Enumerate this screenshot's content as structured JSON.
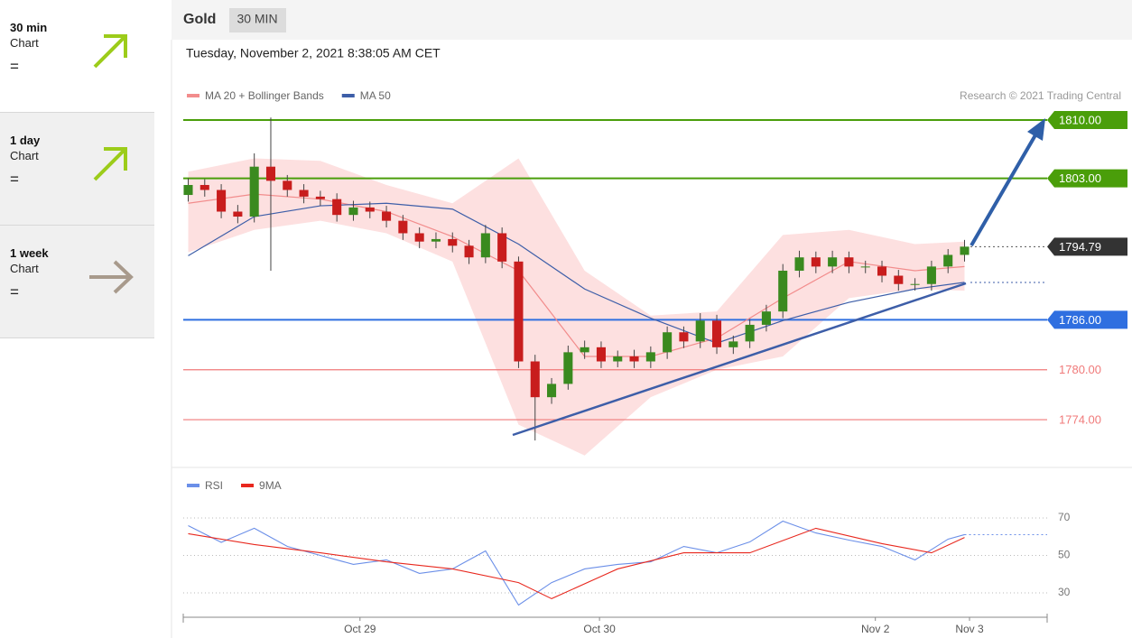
{
  "sidebar": [
    {
      "period": "30 min",
      "label": "Chart",
      "sign": "=",
      "direction": "up"
    },
    {
      "period": "1 day",
      "label": "Chart",
      "sign": "=",
      "direction": "up"
    },
    {
      "period": "1 week",
      "label": "Chart",
      "sign": "=",
      "direction": "right"
    }
  ],
  "header": {
    "title": "Gold",
    "timeframe": "30 MIN",
    "timestamp": "Tuesday, November 2, 2021 8:38:05 AM CET",
    "copyright": "Research © 2021 Trading Central"
  },
  "chart_data": [
    {
      "type": "candlestick",
      "up_color": "#3a8a1f",
      "down_color": "#c81d1d",
      "open": [
        1801.0,
        1802.2,
        1801.6,
        1799.0,
        1798.4,
        1804.4,
        1802.7,
        1801.6,
        1800.8,
        1800.5,
        1798.6,
        1799.5,
        1799.0,
        1797.9,
        1796.4,
        1795.4,
        1795.7,
        1794.9,
        1793.5,
        1796.4,
        1793.0,
        1781.0,
        1776.7,
        1778.3,
        1782.1,
        1782.7,
        1781.0,
        1781.6,
        1781.0,
        1782.1,
        1784.5,
        1783.4,
        1785.9,
        1782.7,
        1783.4,
        1785.4,
        1787.0,
        1791.9,
        1793.5,
        1792.4,
        1793.5,
        1792.4,
        1792.4,
        1791.3,
        1790.3,
        1790.3,
        1792.4,
        1793.8
      ],
      "high": [
        1803.0,
        1802.9,
        1802.3,
        1799.8,
        1806.0,
        1810.3,
        1803.4,
        1802.3,
        1801.5,
        1801.2,
        1800.3,
        1800.2,
        1799.7,
        1798.6,
        1797.1,
        1796.5,
        1796.5,
        1795.6,
        1797.4,
        1797.1,
        1793.6,
        1781.8,
        1779.0,
        1782.9,
        1783.5,
        1783.4,
        1782.3,
        1782.4,
        1782.8,
        1785.2,
        1785.2,
        1786.8,
        1786.6,
        1784.1,
        1786.1,
        1787.8,
        1792.7,
        1794.3,
        1794.2,
        1794.3,
        1794.2,
        1793.1,
        1793.1,
        1792.0,
        1791.0,
        1793.1,
        1794.5,
        1795.6
      ],
      "low": [
        1800.2,
        1800.8,
        1798.2,
        1797.6,
        1797.7,
        1791.9,
        1800.8,
        1800.0,
        1799.7,
        1797.8,
        1797.9,
        1798.2,
        1797.1,
        1795.6,
        1794.6,
        1794.6,
        1794.1,
        1792.7,
        1792.8,
        1792.2,
        1780.2,
        1771.5,
        1775.9,
        1777.6,
        1781.3,
        1780.2,
        1780.3,
        1780.2,
        1780.2,
        1781.3,
        1782.6,
        1782.6,
        1781.9,
        1781.9,
        1782.6,
        1784.6,
        1786.2,
        1791.1,
        1791.6,
        1791.6,
        1791.6,
        1791.6,
        1790.5,
        1789.5,
        1789.5,
        1789.5,
        1791.6,
        1793.0
      ],
      "close": [
        1802.2,
        1801.6,
        1799.0,
        1798.4,
        1804.4,
        1802.7,
        1801.6,
        1800.8,
        1800.5,
        1798.6,
        1799.5,
        1799.0,
        1797.9,
        1796.4,
        1795.4,
        1795.7,
        1794.9,
        1793.5,
        1796.4,
        1793.0,
        1781.0,
        1776.7,
        1778.3,
        1782.1,
        1782.7,
        1781.0,
        1781.6,
        1781.0,
        1782.1,
        1784.5,
        1783.4,
        1785.9,
        1782.7,
        1783.4,
        1785.4,
        1787.0,
        1791.9,
        1793.5,
        1792.4,
        1793.5,
        1792.4,
        1792.4,
        1791.3,
        1790.3,
        1790.3,
        1792.4,
        1793.8,
        1794.79
      ],
      "series": [
        {
          "name": "MA 20 + Bollinger Bands",
          "color": "#f28c8c",
          "band_color": "#fde0e0",
          "x": [
            0,
            4,
            8,
            12,
            16,
            20,
            24,
            28,
            32,
            36,
            40,
            44,
            47
          ],
          "values": [
            1800.0,
            1801.1,
            1800.5,
            1799.0,
            1796.0,
            1791.9,
            1781.6,
            1781.6,
            1783.8,
            1788.6,
            1793.0,
            1791.9,
            1792.4
          ],
          "upper": [
            1803.8,
            1805.4,
            1805.1,
            1802.2,
            1800.0,
            1805.4,
            1791.9,
            1786.5,
            1787.0,
            1796.2,
            1796.8,
            1795.1,
            1795.4
          ],
          "lower": [
            1794.1,
            1796.8,
            1797.9,
            1796.4,
            1793.0,
            1773.4,
            1769.7,
            1776.7,
            1780.0,
            1781.6,
            1788.6,
            1789.7,
            1789.5
          ]
        },
        {
          "name": "MA 50",
          "color": "#3d5ea8",
          "x": [
            0,
            4,
            8,
            12,
            16,
            20,
            24,
            28,
            32,
            36,
            40,
            44,
            47
          ],
          "values": [
            1793.7,
            1798.4,
            1799.7,
            1800.0,
            1799.3,
            1795.1,
            1789.7,
            1786.2,
            1783.2,
            1785.9,
            1788.1,
            1789.7,
            1790.5
          ]
        }
      ],
      "levels": [
        {
          "value": 1810,
          "label": "1810.00",
          "color": "#4a9e0a",
          "tag": true,
          "dash": false
        },
        {
          "value": 1803,
          "label": "1803.00",
          "color": "#4a9e0a",
          "tag": true,
          "dash": false
        },
        {
          "value": 1794.79,
          "label": "1794.79",
          "color": "#333333",
          "tag": true,
          "dash": true
        },
        {
          "value": 1786,
          "label": "1786.00",
          "color": "#2f6fe0",
          "tag": true,
          "dash": false
        },
        {
          "value": 1780,
          "label": "1780.00",
          "color": "#f07a7a",
          "tag": false,
          "dash": false
        },
        {
          "value": 1774,
          "label": "1774.00",
          "color": "#f07a7a",
          "tag": false,
          "dash": false
        }
      ],
      "xlim": [
        -0.3,
        52
      ],
      "ylim": [
        1768,
        1812
      ]
    },
    {
      "type": "line",
      "series": [
        {
          "name": "RSI",
          "color": "#6b8fe8",
          "x": [
            0,
            2,
            4,
            6,
            8,
            10,
            12,
            14,
            16,
            18,
            20,
            22,
            24,
            26,
            28,
            30,
            32,
            34,
            36,
            38,
            40,
            42,
            44,
            46,
            47
          ],
          "values": [
            65.9,
            57,
            64.5,
            54.8,
            50,
            45.2,
            47.6,
            40.4,
            42.8,
            52.4,
            23.5,
            35.5,
            42.8,
            45.2,
            46.6,
            54.8,
            51.4,
            57.2,
            68.3,
            62,
            58.2,
            54.8,
            47.6,
            58.7,
            61.1
          ]
        },
        {
          "name": "9MA",
          "color": "#e8281e",
          "x": [
            0,
            4,
            8,
            12,
            16,
            20,
            22,
            26,
            30,
            34,
            38,
            42,
            45,
            47
          ],
          "values": [
            61.6,
            55.8,
            51.4,
            46.6,
            42.8,
            35.5,
            26.9,
            42.8,
            51.4,
            51.4,
            64.5,
            56.3,
            51.4,
            59.6
          ]
        }
      ],
      "xlim": [
        -0.3,
        52
      ],
      "xticks": [
        {
          "value": 10.4,
          "label": "Oct 29"
        },
        {
          "value": 24.9,
          "label": "Oct 30"
        },
        {
          "value": 41.6,
          "label": "Nov 2"
        },
        {
          "value": 47.3,
          "label": "Nov 3"
        }
      ],
      "ylim": [
        20,
        80
      ],
      "yticks": [
        30,
        50,
        70
      ],
      "grid": true
    }
  ]
}
